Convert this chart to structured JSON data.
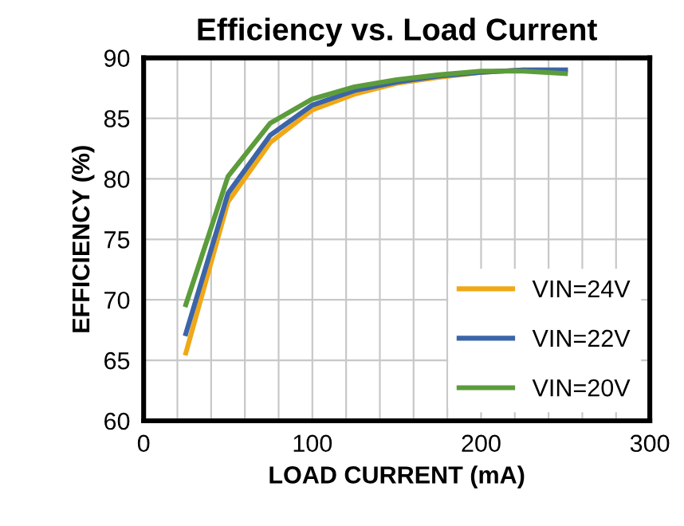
{
  "chart_data": {
    "type": "line",
    "title": "Efficiency vs. Load Current",
    "xlabel": "LOAD CURRENT (mA)",
    "ylabel": "EFFICIENCY (%)",
    "x": [
      25,
      50,
      75,
      100,
      125,
      150,
      175,
      200,
      225,
      250
    ],
    "series": [
      {
        "name": "VIN=24V",
        "color": "#f0a818",
        "values": [
          65.6,
          78.1,
          83.0,
          85.7,
          87.0,
          87.9,
          88.4,
          88.8,
          89.0,
          89.0
        ]
      },
      {
        "name": "VIN=22V",
        "color": "#3c64a8",
        "values": [
          67.2,
          78.8,
          83.6,
          86.1,
          87.3,
          88.0,
          88.5,
          88.8,
          89.0,
          89.0
        ]
      },
      {
        "name": "VIN=20V",
        "color": "#5c9c3c",
        "values": [
          69.6,
          80.2,
          84.6,
          86.6,
          87.6,
          88.2,
          88.6,
          88.9,
          88.9,
          88.7
        ]
      }
    ],
    "xlim": [
      0,
      300
    ],
    "ylim": [
      60,
      90
    ],
    "xticks": [
      0,
      {
        "value": 20,
        "label": null
      },
      {
        "value": 40,
        "label": null
      },
      {
        "value": 60,
        "label": null
      },
      {
        "value": 80,
        "label": null
      },
      100,
      {
        "value": 120,
        "label": null
      },
      {
        "value": 140,
        "label": null
      },
      {
        "value": 160,
        "label": null
      },
      {
        "value": 180,
        "label": null
      },
      200,
      {
        "value": 220,
        "label": null
      },
      {
        "value": 240,
        "label": null
      },
      {
        "value": 260,
        "label": null
      },
      {
        "value": 280,
        "label": null
      },
      300
    ],
    "yticks": [
      60,
      65,
      70,
      75,
      80,
      85,
      90
    ],
    "grid": true,
    "legend": "bottom right",
    "marker": "none",
    "line_style": "solid"
  }
}
